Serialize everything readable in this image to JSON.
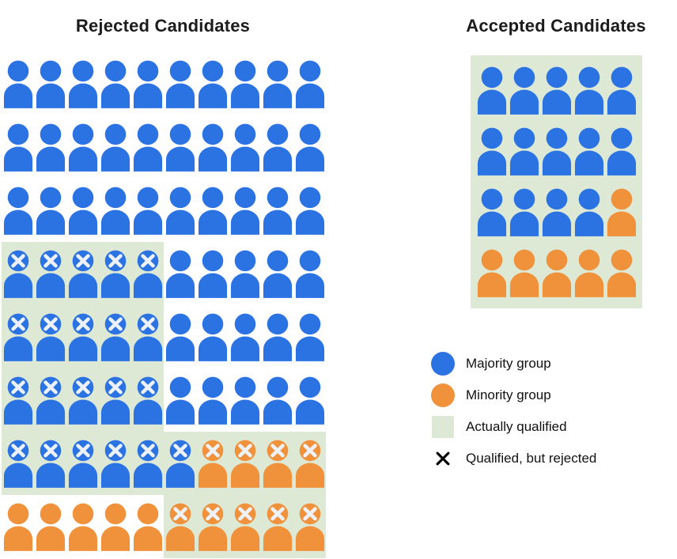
{
  "colors": {
    "majority_blue": "#2b73e2",
    "minority_orange": "#f0923c",
    "qualified_green": "#dde9d4",
    "x_mark_light": "#edf2fa"
  },
  "cell_codes": {
    "b": "majority group (blue person)",
    "o": "minority group (orange person)",
    "x": "has X mark (qualified, but rejected)",
    "q": "on green background (actually qualified)"
  },
  "panels": {
    "rejected": {
      "title": "Rejected Candidates",
      "rows": [
        [
          "b",
          "b",
          "b",
          "b",
          "b",
          "b",
          "b",
          "b",
          "b",
          "b"
        ],
        [
          "b",
          "b",
          "b",
          "b",
          "b",
          "b",
          "b",
          "b",
          "b",
          "b"
        ],
        [
          "b",
          "b",
          "b",
          "b",
          "b",
          "b",
          "b",
          "b",
          "b",
          "b"
        ],
        [
          "bxq",
          "bxq",
          "bxq",
          "bxq",
          "bxq",
          "b",
          "b",
          "b",
          "b",
          "b"
        ],
        [
          "bxq",
          "bxq",
          "bxq",
          "bxq",
          "bxq",
          "b",
          "b",
          "b",
          "b",
          "b"
        ],
        [
          "bxq",
          "bxq",
          "bxq",
          "bxq",
          "bxq",
          "b",
          "b",
          "b",
          "b",
          "b"
        ],
        [
          "bxq",
          "bxq",
          "bxq",
          "bxq",
          "bxq",
          "bxq",
          "oxq",
          "oxq",
          "oxq",
          "oxq"
        ],
        [
          "o",
          "o",
          "o",
          "o",
          "o",
          "oxq",
          "oxq",
          "oxq",
          "oxq",
          "oxq"
        ]
      ]
    },
    "accepted": {
      "title": "Accepted Candidates",
      "rows": [
        [
          "b",
          "b",
          "b",
          "b",
          "b"
        ],
        [
          "b",
          "b",
          "b",
          "b",
          "b"
        ],
        [
          "b",
          "b",
          "b",
          "b",
          "o"
        ],
        [
          "o",
          "o",
          "o",
          "o",
          "o"
        ]
      ]
    }
  },
  "legend": {
    "items": [
      {
        "swatch": "blue-circle",
        "label": "Majority group"
      },
      {
        "swatch": "orange-circle",
        "label": "Minority group"
      },
      {
        "swatch": "green-square",
        "label": "Actually qualified"
      },
      {
        "swatch": "black-x",
        "label": "Qualified, but rejected"
      }
    ]
  },
  "chart_data": {
    "type": "pictograph",
    "title": "Rejected Candidates vs Accepted Candidates",
    "panels": [
      {
        "title": "Rejected Candidates",
        "grid_columns": 10,
        "grid_rows": 8,
        "total_people": 80,
        "majority_group": 66,
        "minority_group": 14,
        "qualified_but_rejected_total": 30,
        "qualified_but_rejected_majority": 21,
        "qualified_but_rejected_minority": 9,
        "unqualified_rejected_majority": 45,
        "unqualified_rejected_minority": 5
      },
      {
        "title": "Accepted Candidates",
        "grid_columns": 5,
        "grid_rows": 4,
        "total_people": 20,
        "majority_group": 14,
        "minority_group": 6,
        "actually_qualified": 20
      }
    ],
    "legend_entries": [
      "Majority group",
      "Minority group",
      "Actually qualified",
      "Qualified, but rejected"
    ],
    "layout_hints": {
      "legend_position": "right-bottom",
      "grid": "off",
      "axes": "none"
    }
  }
}
